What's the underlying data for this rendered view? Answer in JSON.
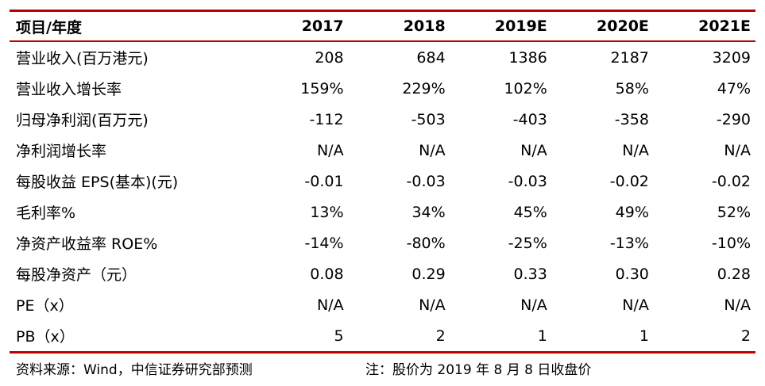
{
  "accent_color": "#c00000",
  "table": {
    "header": {
      "label": "项目/年度",
      "years": [
        "2017",
        "2018",
        "2019E",
        "2020E",
        "2021E"
      ]
    },
    "rows": [
      {
        "label": "营业收入(百万港元)",
        "values": [
          "208",
          "684",
          "1386",
          "2187",
          "3209"
        ]
      },
      {
        "label": "营业收入增长率",
        "values": [
          "159%",
          "229%",
          "102%",
          "58%",
          "47%"
        ]
      },
      {
        "label": "归母净利润(百万元)",
        "values": [
          "-112",
          "-503",
          "-403",
          "-358",
          "-290"
        ]
      },
      {
        "label": "净利润增长率",
        "values": [
          "N/A",
          "N/A",
          "N/A",
          "N/A",
          "N/A"
        ]
      },
      {
        "label": "每股收益 EPS(基本)(元)",
        "values": [
          "-0.01",
          "-0.03",
          "-0.03",
          "-0.02",
          "-0.02"
        ]
      },
      {
        "label": "毛利率%",
        "values": [
          "13%",
          "34%",
          "45%",
          "49%",
          "52%"
        ]
      },
      {
        "label": "净资产收益率 ROE%",
        "values": [
          "-14%",
          "-80%",
          "-25%",
          "-13%",
          "-10%"
        ]
      },
      {
        "label": "每股净资产（元）",
        "values": [
          "0.08",
          "0.29",
          "0.33",
          "0.30",
          "0.28"
        ]
      },
      {
        "label": "PE（x）",
        "values": [
          "N/A",
          "N/A",
          "N/A",
          "N/A",
          "N/A"
        ]
      },
      {
        "label": "PB（x）",
        "values": [
          "5",
          "2",
          "1",
          "1",
          "2"
        ]
      }
    ]
  },
  "footer": {
    "source": "资料来源：Wind，中信证券研究部预测",
    "note": "注：股价为 2019 年 8 月 8 日收盘价"
  }
}
